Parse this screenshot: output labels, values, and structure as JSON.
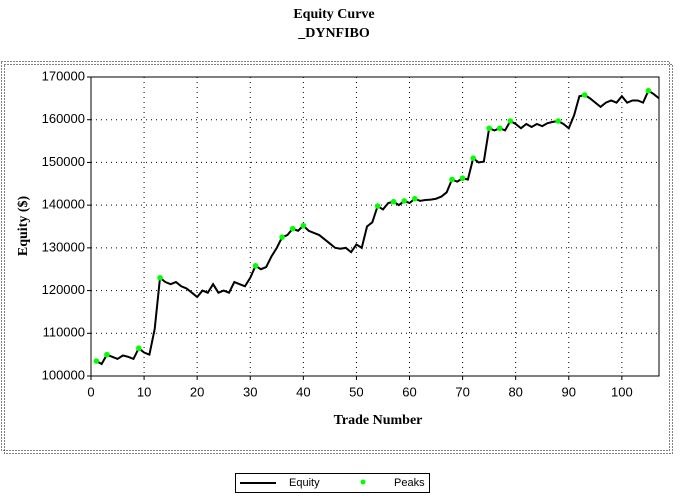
{
  "chart_data": {
    "type": "line",
    "title": "Equity Curve",
    "subtitle": "_DYNFIBO",
    "x_label": "Trade Number",
    "y_label": "Equity ($)",
    "xlim": [
      0,
      107
    ],
    "xticks": [
      0,
      10,
      20,
      30,
      40,
      50,
      60,
      70,
      80,
      90,
      100
    ],
    "ylim": [
      100000,
      170000
    ],
    "yticks": [
      100000,
      110000,
      120000,
      130000,
      140000,
      150000,
      160000,
      170000
    ],
    "grid": true,
    "legend": "bottom",
    "series": [
      {
        "name": "Equity",
        "color": "#000000",
        "mode": "line",
        "x": [
          1,
          2,
          3,
          4,
          5,
          6,
          7,
          8,
          9,
          10,
          11,
          12,
          13,
          14,
          15,
          16,
          17,
          18,
          19,
          20,
          21,
          22,
          23,
          24,
          25,
          26,
          27,
          28,
          29,
          30,
          31,
          32,
          33,
          34,
          35,
          36,
          37,
          38,
          39,
          40,
          41,
          42,
          43,
          44,
          45,
          46,
          47,
          48,
          49,
          50,
          51,
          52,
          53,
          54,
          55,
          56,
          57,
          58,
          59,
          60,
          61,
          62,
          63,
          64,
          65,
          66,
          67,
          68,
          69,
          70,
          71,
          72,
          73,
          74,
          75,
          76,
          77,
          78,
          79,
          80,
          81,
          82,
          83,
          84,
          85,
          86,
          87,
          88,
          89,
          90,
          91,
          92,
          93,
          94,
          95,
          96,
          97,
          98,
          99,
          100,
          101,
          102,
          103,
          104,
          105,
          106,
          107
        ],
        "values": [
          103500,
          102800,
          105000,
          104500,
          104000,
          104800,
          104500,
          104000,
          106500,
          105500,
          105000,
          111000,
          123000,
          122000,
          121500,
          122000,
          121000,
          120500,
          119500,
          118500,
          120000,
          119500,
          121500,
          119500,
          120000,
          119500,
          122000,
          121500,
          121000,
          123000,
          125800,
          125000,
          125500,
          128000,
          130000,
          132500,
          133000,
          134500,
          134000,
          135200,
          134000,
          133500,
          133000,
          132000,
          131000,
          130000,
          129800,
          130000,
          129000,
          130800,
          130000,
          135000,
          136000,
          139800,
          139000,
          140500,
          140800,
          140000,
          141000,
          140500,
          141500,
          141000,
          141200,
          141300,
          141500,
          142000,
          143000,
          146000,
          145500,
          146300,
          146000,
          151000,
          150000,
          150200,
          158000,
          157500,
          158000,
          157500,
          159700,
          159000,
          158000,
          159000,
          158300,
          159000,
          158500,
          159200,
          159500,
          159700,
          159000,
          158000,
          161000,
          165500,
          165800,
          165000,
          164000,
          163000,
          164000,
          164500,
          164000,
          165500,
          164000,
          164500,
          164500,
          164000,
          166800,
          166000,
          165000
        ]
      },
      {
        "name": "Peaks",
        "color": "#00ff00",
        "mode": "markers",
        "x": [
          1,
          3,
          9,
          13,
          31,
          36,
          38,
          40,
          54,
          57,
          59,
          61,
          68,
          70,
          72,
          75,
          77,
          79,
          88,
          93,
          105
        ],
        "values": [
          103500,
          105000,
          106500,
          123000,
          125800,
          132500,
          134500,
          135200,
          139800,
          140800,
          141000,
          141500,
          146000,
          146300,
          151000,
          158000,
          158000,
          159700,
          159700,
          165800,
          166800
        ]
      }
    ]
  }
}
